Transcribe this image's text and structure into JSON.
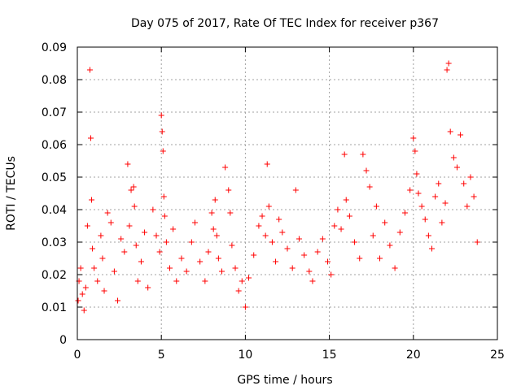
{
  "chart_data": {
    "type": "scatter",
    "title": "Day 075 of 2017, Rate Of TEC Index for receiver p367",
    "xlabel": "GPS time / hours",
    "ylabel": "ROTI / TECUs",
    "xlim": [
      0,
      25
    ],
    "ylim": [
      0,
      0.09
    ],
    "xticks": [
      0,
      5,
      10,
      15,
      20,
      25
    ],
    "yticks": [
      0,
      0.01,
      0.02,
      0.03,
      0.04,
      0.05,
      0.06,
      0.07,
      0.08,
      0.09
    ],
    "xtick_labels": [
      "0",
      "5",
      "10",
      "15",
      "20",
      "25"
    ],
    "ytick_labels": [
      "0",
      "0.01",
      "0.02",
      "0.03",
      "0.04",
      "0.05",
      "0.06",
      "0.07",
      "0.08",
      "0.09"
    ],
    "grid": true,
    "marker": "+",
    "color": "#ff0000",
    "series": [
      {
        "name": "ROTI",
        "x": [
          0.05,
          0.1,
          0.2,
          0.3,
          0.4,
          0.5,
          0.6,
          0.75,
          0.8,
          0.85,
          0.9,
          1.0,
          1.2,
          1.4,
          1.5,
          1.6,
          1.8,
          2.0,
          2.2,
          2.4,
          2.6,
          2.8,
          3.0,
          3.1,
          3.2,
          3.35,
          3.4,
          3.5,
          3.6,
          3.8,
          4.0,
          4.2,
          4.5,
          4.7,
          4.9,
          5.0,
          5.05,
          5.1,
          5.15,
          5.2,
          5.3,
          5.5,
          5.7,
          5.9,
          6.2,
          6.5,
          6.8,
          7.0,
          7.3,
          7.6,
          7.8,
          8.0,
          8.1,
          8.2,
          8.3,
          8.4,
          8.6,
          8.8,
          9.0,
          9.1,
          9.2,
          9.4,
          9.6,
          9.8,
          10.0,
          10.2,
          10.5,
          10.8,
          11.0,
          11.2,
          11.3,
          11.4,
          11.6,
          11.8,
          12.0,
          12.2,
          12.5,
          12.8,
          13.0,
          13.2,
          13.5,
          13.8,
          14.0,
          14.3,
          14.6,
          14.9,
          15.1,
          15.3,
          15.5,
          15.7,
          15.9,
          16.0,
          16.2,
          16.5,
          16.8,
          17.0,
          17.2,
          17.4,
          17.6,
          17.8,
          18.0,
          18.3,
          18.6,
          18.9,
          19.2,
          19.5,
          19.8,
          20.0,
          20.1,
          20.2,
          20.3,
          20.5,
          20.7,
          20.9,
          21.1,
          21.3,
          21.5,
          21.7,
          21.9,
          22.0,
          22.1,
          22.2,
          22.4,
          22.6,
          22.8,
          23.0,
          23.2,
          23.4,
          23.6,
          23.8
        ],
        "y": [
          0.012,
          0.018,
          0.022,
          0.014,
          0.009,
          0.016,
          0.035,
          0.083,
          0.062,
          0.043,
          0.028,
          0.022,
          0.018,
          0.032,
          0.025,
          0.015,
          0.039,
          0.036,
          0.021,
          0.012,
          0.031,
          0.027,
          0.054,
          0.035,
          0.046,
          0.047,
          0.041,
          0.029,
          0.018,
          0.024,
          0.033,
          0.016,
          0.04,
          0.032,
          0.027,
          0.069,
          0.064,
          0.058,
          0.044,
          0.038,
          0.03,
          0.022,
          0.034,
          0.018,
          0.025,
          0.021,
          0.03,
          0.036,
          0.024,
          0.018,
          0.027,
          0.039,
          0.034,
          0.043,
          0.032,
          0.025,
          0.021,
          0.053,
          0.046,
          0.039,
          0.029,
          0.022,
          0.015,
          0.018,
          0.01,
          0.019,
          0.026,
          0.035,
          0.038,
          0.032,
          0.054,
          0.041,
          0.03,
          0.024,
          0.037,
          0.033,
          0.028,
          0.022,
          0.046,
          0.031,
          0.026,
          0.021,
          0.018,
          0.027,
          0.031,
          0.024,
          0.02,
          0.035,
          0.04,
          0.034,
          0.057,
          0.043,
          0.038,
          0.03,
          0.025,
          0.057,
          0.052,
          0.047,
          0.032,
          0.041,
          0.025,
          0.036,
          0.029,
          0.022,
          0.033,
          0.039,
          0.046,
          0.062,
          0.058,
          0.051,
          0.045,
          0.041,
          0.037,
          0.032,
          0.028,
          0.044,
          0.048,
          0.036,
          0.042,
          0.083,
          0.085,
          0.064,
          0.056,
          0.053,
          0.063,
          0.048,
          0.041,
          0.05,
          0.044,
          0.03
        ]
      }
    ]
  }
}
